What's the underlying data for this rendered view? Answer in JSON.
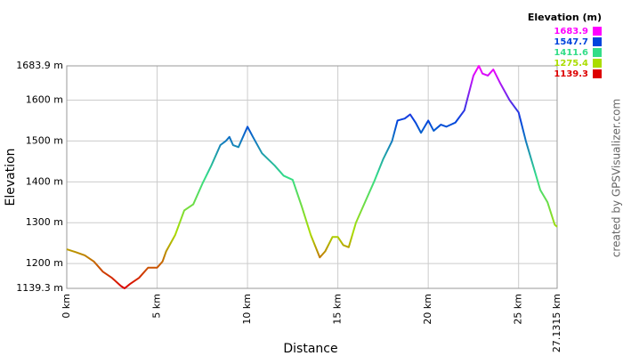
{
  "chart_data": {
    "type": "line",
    "legend_title": "Elevation (m)",
    "x_label": "Distance",
    "y_label": "Elevation",
    "credit": "created by GPSVisualizer.com",
    "color_scale": [
      {
        "value": 1683.9,
        "color": "#ff00ff"
      },
      {
        "value": 1547.7,
        "color": "#0044dd"
      },
      {
        "value": 1411.6,
        "color": "#33dd88"
      },
      {
        "value": 1275.4,
        "color": "#aadd00"
      },
      {
        "value": 1139.3,
        "color": "#dd0000"
      }
    ],
    "xlim": [
      0,
      27.1315
    ],
    "ylim": [
      1139.3,
      1683.9
    ],
    "xticks": [
      {
        "value": 0,
        "label": "0 km"
      },
      {
        "value": 5,
        "label": "5 km"
      },
      {
        "value": 10,
        "label": "10 km"
      },
      {
        "value": 15,
        "label": "15 km"
      },
      {
        "value": 20,
        "label": "20 km"
      },
      {
        "value": 25,
        "label": "25 km"
      },
      {
        "value": 27.1315,
        "label": "27.1315 km"
      }
    ],
    "yticks": [
      {
        "value": 1139.3,
        "label": "1139.3 m"
      },
      {
        "value": 1200,
        "label": "1200 m"
      },
      {
        "value": 1300,
        "label": "1300 m"
      },
      {
        "value": 1400,
        "label": "1400 m"
      },
      {
        "value": 1500,
        "label": "1500 m"
      },
      {
        "value": 1600,
        "label": "1600 m"
      },
      {
        "value": 1683.9,
        "label": "1683.9 m"
      }
    ],
    "grid": true,
    "x": [
      0,
      0.5,
      1.0,
      1.5,
      2.0,
      2.5,
      3.0,
      3.2,
      3.5,
      4.0,
      4.3,
      4.5,
      5.0,
      5.3,
      5.5,
      6.0,
      6.5,
      7.0,
      7.5,
      8.0,
      8.5,
      8.8,
      9.0,
      9.2,
      9.5,
      9.8,
      10.0,
      10.3,
      10.8,
      11.5,
      12.0,
      12.5,
      13.0,
      13.5,
      14.0,
      14.3,
      14.7,
      15.0,
      15.3,
      15.6,
      16.0,
      16.5,
      17.0,
      17.5,
      18.0,
      18.3,
      18.7,
      19.0,
      19.3,
      19.6,
      20.0,
      20.3,
      20.7,
      21.0,
      21.5,
      22.0,
      22.5,
      22.8,
      23.0,
      23.3,
      23.6,
      24.0,
      24.5,
      25.0,
      25.4,
      25.8,
      26.2,
      26.6,
      27.0,
      27.1315
    ],
    "values": [
      1235,
      1228,
      1220,
      1205,
      1180,
      1165,
      1145,
      1139.3,
      1150,
      1165,
      1180,
      1190,
      1190,
      1205,
      1230,
      1270,
      1330,
      1345,
      1395,
      1440,
      1490,
      1500,
      1510,
      1490,
      1485,
      1515,
      1535,
      1510,
      1470,
      1440,
      1415,
      1405,
      1340,
      1270,
      1215,
      1230,
      1265,
      1265,
      1245,
      1240,
      1300,
      1350,
      1400,
      1455,
      1500,
      1550,
      1555,
      1565,
      1545,
      1520,
      1550,
      1525,
      1540,
      1535,
      1545,
      1575,
      1660,
      1683.9,
      1665,
      1660,
      1675,
      1640,
      1600,
      1570,
      1500,
      1440,
      1380,
      1350,
      1295,
      1290
    ]
  }
}
